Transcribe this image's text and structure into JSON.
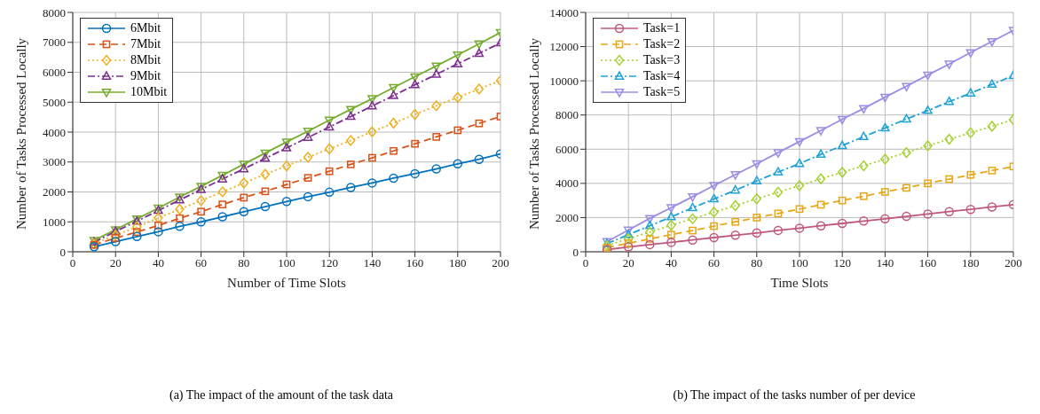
{
  "chart_data": [
    {
      "type": "line",
      "x": [
        10,
        20,
        30,
        40,
        50,
        60,
        70,
        80,
        90,
        100,
        110,
        120,
        130,
        140,
        150,
        160,
        170,
        180,
        190,
        200
      ],
      "xlabel": "Number of Time Slots",
      "ylabel": "Number of Tasks Processed Locally",
      "xlim": [
        0,
        200
      ],
      "xticks": [
        0,
        20,
        40,
        60,
        80,
        100,
        120,
        140,
        160,
        180,
        200
      ],
      "ylim": [
        0,
        8000
      ],
      "yticks": [
        0,
        1000,
        2000,
        3000,
        4000,
        5000,
        6000,
        7000,
        8000
      ],
      "grid": true,
      "legend": "top left",
      "annotations": [
        "(a) The impact of the amount of the task data"
      ],
      "series": [
        {
          "name": "6Mbit",
          "color": "#0072bd",
          "marker": "circle",
          "line_style": "solid",
          "values": [
            170,
            340,
            510,
            670,
            850,
            1000,
            1170,
            1340,
            1510,
            1680,
            1840,
            1990,
            2150,
            2300,
            2460,
            2610,
            2770,
            2940,
            3090,
            3270
          ]
        },
        {
          "name": "7Mbit",
          "color": "#d95319",
          "marker": "square",
          "line_style": "dashed",
          "values": [
            230,
            460,
            660,
            880,
            1120,
            1340,
            1580,
            1810,
            2020,
            2250,
            2470,
            2690,
            2920,
            3140,
            3370,
            3610,
            3840,
            4060,
            4290,
            4520
          ]
        },
        {
          "name": "8Mbit",
          "color": "#edb120",
          "marker": "diamond",
          "line_style": "dotted",
          "values": [
            270,
            550,
            830,
            1130,
            1420,
            1710,
            2000,
            2300,
            2590,
            2870,
            3160,
            3440,
            3720,
            4010,
            4300,
            4590,
            4880,
            5160,
            5440,
            5720
          ]
        },
        {
          "name": "9Mbit",
          "color": "#7e2f8e",
          "marker": "triangle",
          "line_style": "dashdot",
          "values": [
            320,
            680,
            1020,
            1380,
            1730,
            2080,
            2430,
            2770,
            3120,
            3470,
            3820,
            4170,
            4520,
            4870,
            5220,
            5580,
            5930,
            6280,
            6630,
            6980
          ]
        },
        {
          "name": "10Mbit",
          "color": "#77ac30",
          "marker": "triangle-down",
          "line_style": "solid",
          "values": [
            380,
            740,
            1100,
            1460,
            1830,
            2190,
            2560,
            2930,
            3300,
            3670,
            4030,
            4400,
            4760,
            5120,
            5490,
            5850,
            6210,
            6580,
            6950,
            7330
          ]
        }
      ]
    },
    {
      "type": "line",
      "x": [
        10,
        20,
        30,
        40,
        50,
        60,
        70,
        80,
        90,
        100,
        110,
        120,
        130,
        140,
        150,
        160,
        170,
        180,
        190,
        200
      ],
      "xlabel": "Time Slots",
      "ylabel": "Number of Tasks Processed Locally",
      "xlim": [
        0,
        200
      ],
      "xticks": [
        0,
        20,
        40,
        60,
        80,
        100,
        120,
        140,
        160,
        180,
        200
      ],
      "ylim": [
        0,
        14000
      ],
      "yticks": [
        0,
        2000,
        4000,
        6000,
        8000,
        10000,
        12000,
        14000
      ],
      "grid": true,
      "legend": "top left",
      "annotations": [
        "(b) The impact of the tasks number of per device"
      ],
      "series": [
        {
          "name": "Task=1",
          "color": "#c0587e",
          "marker": "circle",
          "line_style": "solid",
          "values": [
            130,
            280,
            420,
            550,
            690,
            830,
            970,
            1100,
            1250,
            1380,
            1520,
            1660,
            1800,
            1930,
            2070,
            2210,
            2350,
            2480,
            2620,
            2760
          ]
        },
        {
          "name": "Task=2",
          "color": "#e6a817",
          "marker": "square",
          "line_style": "dashed",
          "values": [
            240,
            500,
            750,
            1000,
            1240,
            1500,
            1750,
            2000,
            2240,
            2500,
            2750,
            3000,
            3250,
            3500,
            3740,
            4000,
            4250,
            4500,
            4750,
            4990
          ]
        },
        {
          "name": "Task=3",
          "color": "#a6d12e",
          "marker": "diamond",
          "line_style": "dotted",
          "values": [
            360,
            770,
            1150,
            1550,
            1930,
            2320,
            2700,
            3100,
            3480,
            3870,
            4270,
            4650,
            5030,
            5420,
            5800,
            6200,
            6580,
            6960,
            7340,
            7730
          ]
        },
        {
          "name": "Task=4",
          "color": "#1fa2d8",
          "marker": "triangle",
          "line_style": "dashdot",
          "values": [
            480,
            1000,
            1520,
            2040,
            2570,
            3090,
            3600,
            4140,
            4660,
            5160,
            5700,
            6210,
            6730,
            7240,
            7760,
            8260,
            8780,
            9280,
            9790,
            10300
          ]
        },
        {
          "name": "Task=5",
          "color": "#9b8ce6",
          "marker": "triangle-down",
          "line_style": "solid",
          "values": [
            600,
            1270,
            1950,
            2580,
            3220,
            3880,
            4510,
            5150,
            5800,
            6450,
            7090,
            7750,
            8380,
            9040,
            9680,
            10340,
            10980,
            11650,
            12300,
            12950
          ]
        }
      ]
    }
  ]
}
